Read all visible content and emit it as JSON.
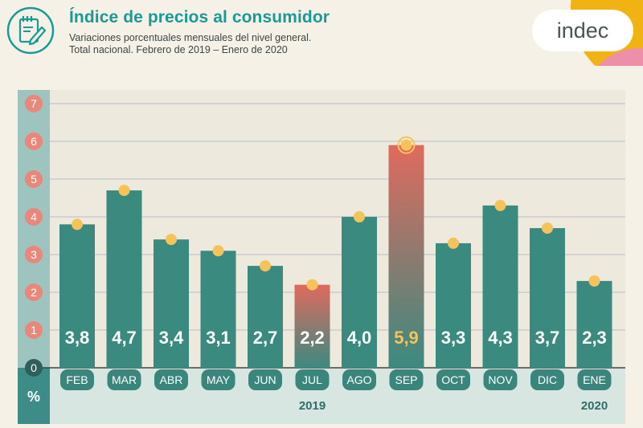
{
  "header": {
    "title": "Índice de precios al consumidor",
    "subtitle_line1": "Variaciones porcentuales mensuales del nivel general.",
    "subtitle_line2": "Total nacional. Febrero de 2019 – Enero de 2020",
    "logo_text": "indec"
  },
  "axis": {
    "unit_label": "%"
  },
  "colors": {
    "bar": "#3b8a80",
    "highlight_top": "#e06a5e",
    "highlight_bottom": "#3b8a80",
    "marker": "#f5c35a",
    "axis_circle": "#e8877a",
    "axis_panel": "#3c8d87",
    "teal_accent": "#1a9a96",
    "logo_yellow": "#f0b313",
    "logo_pink": "#ee8faa"
  },
  "chart_data": {
    "type": "bar",
    "title": "Índice de precios al consumidor",
    "xlabel": "",
    "ylabel": "%",
    "categories": [
      "FEB",
      "MAR",
      "ABR",
      "MAY",
      "JUN",
      "JUL",
      "AGO",
      "SEP",
      "OCT",
      "NOV",
      "DIC",
      "ENE"
    ],
    "values": [
      3.8,
      4.7,
      3.4,
      3.1,
      2.7,
      2.2,
      4.0,
      5.9,
      3.3,
      4.3,
      3.7,
      2.3
    ],
    "value_labels": [
      "3,8",
      "4,7",
      "3,4",
      "3,1",
      "2,7",
      "2,2",
      "4,0",
      "5,9",
      "3,3",
      "4,3",
      "3,7",
      "2,3"
    ],
    "yticks": [
      "0",
      "1",
      "2",
      "3",
      "4",
      "5",
      "6",
      "7"
    ],
    "ylim": [
      0,
      7
    ],
    "highlight": [
      "JUL",
      "SEP"
    ],
    "max_category": "SEP",
    "year_labels": [
      {
        "label": "2019",
        "category": "JUL"
      },
      {
        "label": "2020",
        "category": "ENE"
      }
    ],
    "grid": true
  }
}
